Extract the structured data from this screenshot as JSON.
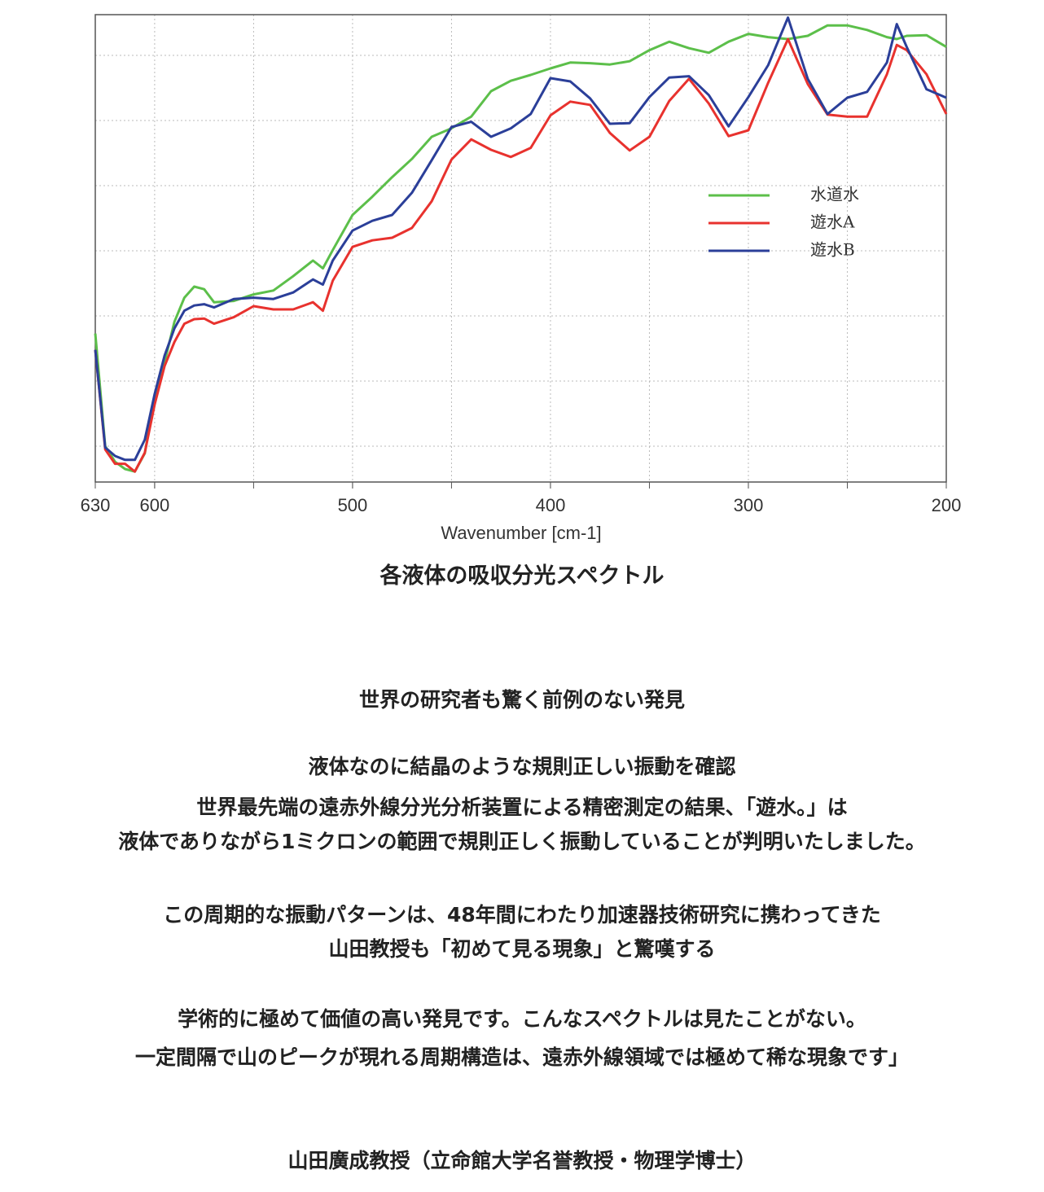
{
  "chart_data": {
    "type": "line",
    "xlabel": "Wavenumber [cm-1]",
    "xlim": [
      630,
      200
    ],
    "xticks": [
      630,
      600,
      500,
      400,
      300,
      200
    ],
    "xgrid": [
      600,
      550,
      500,
      450,
      400,
      350,
      300,
      250
    ],
    "ylim": [
      0.45,
      7.625
    ],
    "ygrid": [
      1,
      2,
      3,
      4,
      5,
      6,
      7
    ],
    "grid": true,
    "legend": "upper-right",
    "x": [
      630,
      625,
      620,
      615,
      610,
      605,
      600,
      595,
      590,
      585,
      580,
      575,
      570,
      560,
      550,
      540,
      530,
      520,
      515,
      510,
      500,
      490,
      480,
      470,
      460,
      450,
      440,
      430,
      420,
      410,
      400,
      390,
      380,
      370,
      360,
      350,
      340,
      330,
      320,
      310,
      300,
      290,
      280,
      270,
      260,
      250,
      240,
      230,
      225,
      220,
      210,
      200
    ],
    "series": [
      {
        "name": "水道水",
        "color": "#5cbf4a",
        "values": [
          2.73,
          1.0,
          0.76,
          0.65,
          0.61,
          0.89,
          1.75,
          2.29,
          2.91,
          3.28,
          3.45,
          3.41,
          3.21,
          3.23,
          3.33,
          3.39,
          3.61,
          3.85,
          3.73,
          4.01,
          4.55,
          4.83,
          5.13,
          5.41,
          5.75,
          5.88,
          6.06,
          6.45,
          6.61,
          6.7,
          6.8,
          6.89,
          6.88,
          6.86,
          6.91,
          7.08,
          7.21,
          7.11,
          7.04,
          7.21,
          7.33,
          7.28,
          7.25,
          7.3,
          7.46,
          7.46,
          7.39,
          7.28,
          7.25,
          7.3,
          7.31,
          7.13
        ]
      },
      {
        "name": "遊水A",
        "color": "#e8322e",
        "values": [
          2.48,
          0.95,
          0.73,
          0.73,
          0.61,
          0.9,
          1.64,
          2.23,
          2.6,
          2.88,
          2.95,
          2.96,
          2.88,
          2.98,
          3.15,
          3.1,
          3.1,
          3.21,
          3.08,
          3.54,
          4.06,
          4.16,
          4.2,
          4.35,
          4.76,
          5.4,
          5.71,
          5.55,
          5.44,
          5.58,
          6.08,
          6.29,
          6.24,
          5.81,
          5.54,
          5.75,
          6.3,
          6.64,
          6.26,
          5.76,
          5.85,
          6.58,
          7.25,
          6.56,
          6.09,
          6.06,
          6.06,
          6.71,
          7.16,
          7.08,
          6.71,
          6.1
        ]
      },
      {
        "name": "遊水B",
        "color": "#2b3f99",
        "values": [
          2.48,
          0.98,
          0.85,
          0.79,
          0.79,
          1.1,
          1.8,
          2.39,
          2.81,
          3.08,
          3.16,
          3.18,
          3.13,
          3.26,
          3.28,
          3.26,
          3.36,
          3.56,
          3.48,
          3.85,
          4.31,
          4.46,
          4.55,
          4.89,
          5.39,
          5.9,
          5.98,
          5.75,
          5.88,
          6.1,
          6.65,
          6.6,
          6.34,
          5.95,
          5.96,
          6.36,
          6.66,
          6.68,
          6.39,
          5.91,
          6.36,
          6.85,
          7.58,
          6.64,
          6.1,
          6.35,
          6.44,
          6.89,
          7.48,
          7.13,
          6.48,
          6.35
        ]
      }
    ]
  },
  "caption": "各液体の吸収分光スペクトル",
  "heading": "世界の研究者も驚く前例のない発見",
  "paragraphs": [
    [
      "液体なのに結晶のような規則正しい振動を確認",
      "世界最先端の遠赤外線分光分析装置による精密測定の結果、「遊水。」は",
      "液体でありながら1ミクロンの範囲で規則正しく振動していることが判明いたしました。"
    ],
    [
      "この周期的な振動パターンは、48年間にわたり加速器技術研究に携わってきた",
      "山田教授も「初めて見る現象」と驚嘆する"
    ],
    [
      "学術的に極めて価値の高い発見です。こんなスペクトルは見たことがない。",
      "一定間隔で山のピークが現れる周期構造は、遠赤外線領域では極めて稀な現象です」"
    ]
  ],
  "signature": "山田廣成教授（立命館大学名誉教授・物理学博士）"
}
